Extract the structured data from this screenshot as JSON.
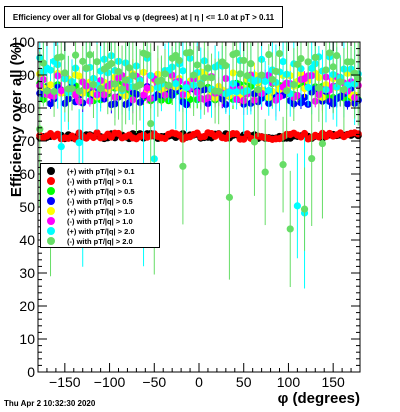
{
  "title": "Efficiency over all for Global vs φ (degrees) at | η | <= 1.0 at pT > 0.11",
  "footer": "Thu Apr  2 10:32:30 2020",
  "chart_data": {
    "type": "scatter",
    "xlabel": "φ (degrees)",
    "ylabel": "Efficiency over all (%)",
    "xlim": [
      -180,
      180
    ],
    "ylim": [
      0,
      100
    ],
    "xticks": [
      -150,
      -100,
      -50,
      0,
      50,
      100,
      150
    ],
    "yticks": [
      0,
      10,
      20,
      30,
      40,
      50,
      60,
      70,
      80,
      90,
      100
    ],
    "grid": false,
    "legend_position": "center-left",
    "series": [
      {
        "name": "(+) with pT/|q| > 0.1",
        "color": "#000000",
        "base": 71.5,
        "amp": 0.8,
        "errfrac": 0.3,
        "seed": 3
      },
      {
        "name": "(-) with pT/|q| > 0.1",
        "color": "#ff0000",
        "base": 71.5,
        "amp": 1.0,
        "errfrac": 0.3,
        "seed": 7
      },
      {
        "name": "(+) with pT/|q| > 0.5",
        "color": "#00ff00",
        "base": 85,
        "amp": 3,
        "errfrac": 0.4,
        "seed": 11
      },
      {
        "name": "(-) with pT/|q| > 0.5",
        "color": "#0000ff",
        "base": 84,
        "amp": 3,
        "errfrac": 0.4,
        "seed": 13
      },
      {
        "name": "(+) with pT/|q| > 1.0",
        "color": "#ffff00",
        "base": 87,
        "amp": 4,
        "errfrac": 0.5,
        "seed": 17
      },
      {
        "name": "(-) with pT/|q| > 1.0",
        "color": "#ff00ff",
        "base": 86,
        "amp": 4,
        "errfrac": 0.5,
        "seed": 19
      },
      {
        "name": "(+) with pT/|q| > 2.0",
        "color": "#00ffff",
        "base": 90,
        "amp": 6,
        "errfrac": 1.0,
        "seed": 23
      },
      {
        "name": "(-) with pT/|q| > 2.0",
        "color": "#66dd66",
        "base": 91,
        "amp": 6,
        "errfrac": 1.0,
        "seed": 29
      }
    ],
    "nbins": 90
  }
}
